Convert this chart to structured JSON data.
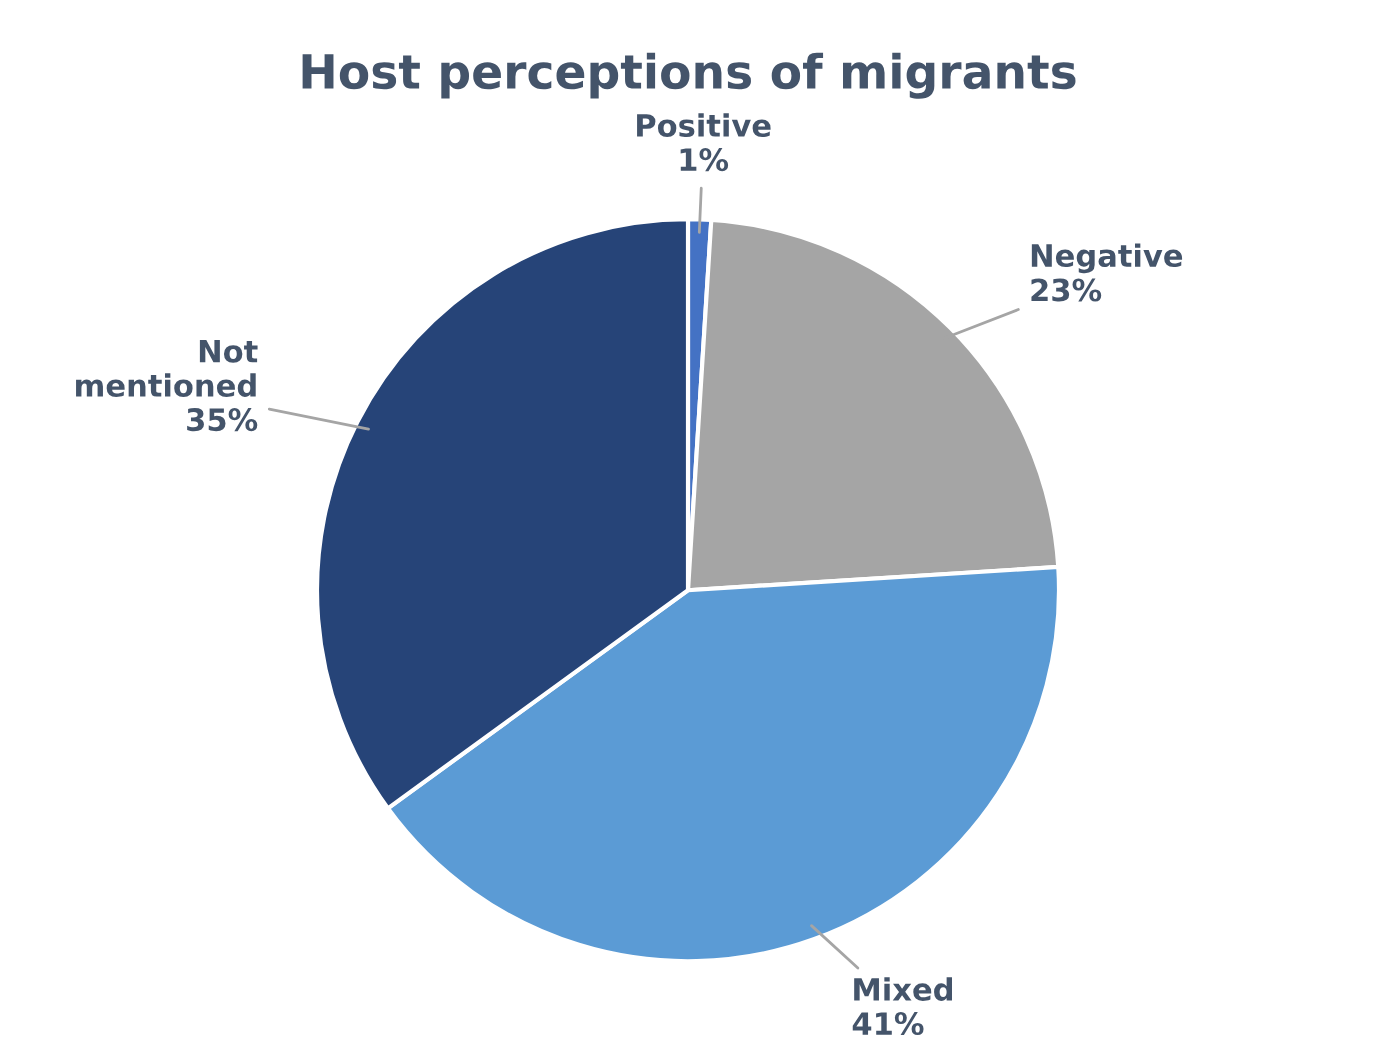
{
  "chart_data": {
    "type": "pie",
    "title": "Host perceptions of migrants",
    "categories": [
      "Positive",
      "Negative",
      "Mixed",
      "Not\nmentioned"
    ],
    "values": [
      1,
      23,
      41,
      35
    ],
    "colors": [
      "#4472c4",
      "#a5a5a5",
      "#5b9bd5",
      "#264478"
    ],
    "value_labels": [
      "1%",
      "23%",
      "41%",
      "35%"
    ],
    "legend": false
  }
}
